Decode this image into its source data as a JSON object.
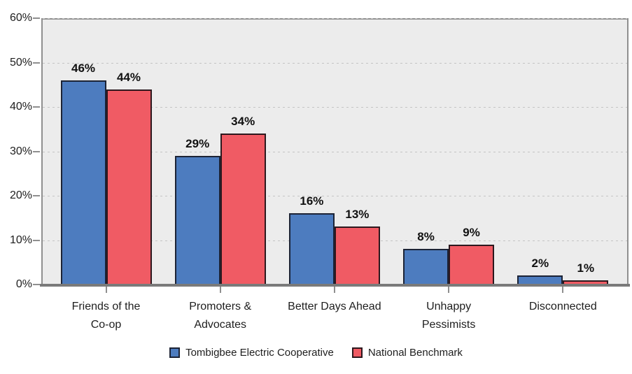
{
  "chart_data": {
    "type": "bar",
    "title": "",
    "categories": [
      "Friends of the Co-op",
      "Promoters & Advocates",
      "Better Days Ahead",
      "Unhappy Pessimists",
      "Disconnected"
    ],
    "category_lines": [
      [
        "Friends of the",
        "Co-op"
      ],
      [
        "Promoters &",
        "Advocates"
      ],
      [
        "Better Days Ahead"
      ],
      [
        "Unhappy",
        "Pessimists"
      ],
      [
        "Disconnected"
      ]
    ],
    "series": [
      {
        "name": "Tombigbee Electric Cooperative",
        "values": [
          46,
          29,
          16,
          8,
          2
        ],
        "labels": [
          "46%",
          "29%",
          "16%",
          "8%",
          "2%"
        ],
        "color": "#4D7CBF",
        "border_color": "#1C2335"
      },
      {
        "name": "National Benchmark",
        "values": [
          44,
          34,
          13,
          9,
          1
        ],
        "labels": [
          "44%",
          "34%",
          "13%",
          "9%",
          "1%"
        ],
        "color": "#F05B64",
        "border_color": "#2D181E"
      }
    ],
    "xlabel": "",
    "ylabel": "",
    "ylim": [
      0,
      60
    ],
    "ytick_step": 10,
    "ytick_labels": [
      "0%",
      "10%",
      "20%",
      "30%",
      "40%",
      "50%",
      "60%"
    ],
    "grid": true,
    "gridline_style": "dotted",
    "legend_position": "bottom"
  },
  "colors": {
    "page_background": "#FFFFFF",
    "plot_background": "#ECECEC",
    "plot_border": "#8F8F8F",
    "axis_line": "#7A7A7A",
    "gridline": "#C4C4C4",
    "tick": "#8F8F8F",
    "label_text": "#1E1E1E",
    "value_label_text": "#111111"
  }
}
